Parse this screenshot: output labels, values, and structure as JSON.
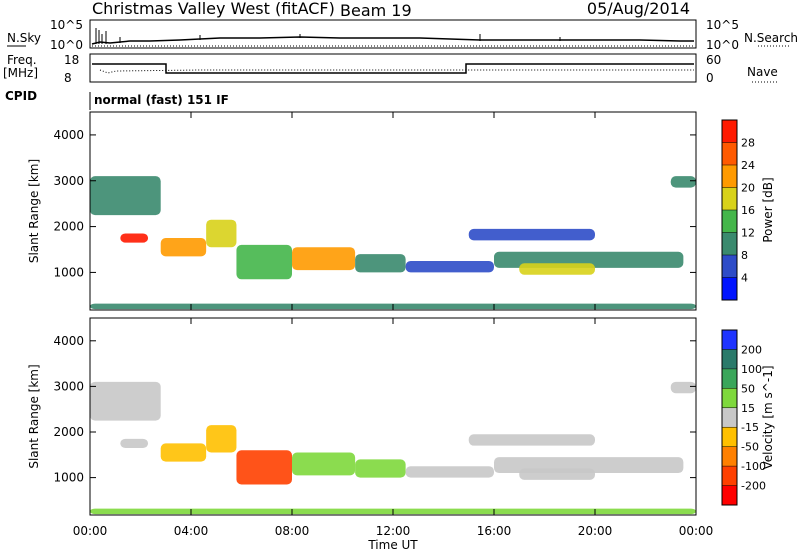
{
  "header": {
    "station": "Christmas Valley West (fitACF)",
    "beam": "Beam 19",
    "date": "05/Aug/2014"
  },
  "top_strip": {
    "left_label": "N.Sky",
    "left_ticks": [
      "10^5",
      "10^0"
    ],
    "right_ticks": [
      "10^5",
      "10^0"
    ],
    "right_label": "N.Search"
  },
  "freq_strip": {
    "left_label_1": "Freq.",
    "left_label_2": "[MHz]",
    "left_ticks": [
      "18",
      "8"
    ],
    "right_ticks": [
      "60",
      "0"
    ],
    "right_label": "Nave"
  },
  "cpid": {
    "label": "CPID",
    "program": "normal (fast) 151 IF"
  },
  "chart_data": [
    {
      "type": "heatmap",
      "title": "",
      "ylabel": "Slant Range [km]",
      "xlabel": "",
      "x_ticks": [
        "00:00",
        "04:00",
        "08:00",
        "12:00",
        "16:00",
        "20:00",
        "00:00"
      ],
      "xlim_hours": [
        0,
        24
      ],
      "y_ticks": [
        "1000",
        "2000",
        "3000",
        "4000"
      ],
      "ylim": [
        180,
        4500
      ],
      "colorbar": {
        "label": "Power [dB]",
        "ticks": [
          "4",
          "8",
          "12",
          "16",
          "20",
          "24",
          "28"
        ],
        "range": [
          0,
          30
        ],
        "colors": [
          "#0014ff",
          "#2e4cc8",
          "#3a8a6e",
          "#44b64a",
          "#d8d21a",
          "#ff9a00",
          "#ff5a00",
          "#ff1a00"
        ]
      },
      "bands": [
        {
          "t0": 0.0,
          "t1": 2.8,
          "r0": 2250,
          "r1": 3100,
          "level": 10
        },
        {
          "t0": 1.2,
          "t1": 2.3,
          "r0": 1650,
          "r1": 1850,
          "level": 28
        },
        {
          "t0": 2.8,
          "t1": 4.6,
          "r0": 1350,
          "r1": 1750,
          "level": 22
        },
        {
          "t0": 4.6,
          "t1": 5.8,
          "r0": 1550,
          "r1": 2150,
          "level": 18
        },
        {
          "t0": 5.8,
          "t1": 8.0,
          "r0": 850,
          "r1": 1600,
          "level": 14
        },
        {
          "t0": 8.0,
          "t1": 10.5,
          "r0": 1050,
          "r1": 1550,
          "level": 22
        },
        {
          "t0": 10.5,
          "t1": 12.5,
          "r0": 1000,
          "r1": 1400,
          "level": 8
        },
        {
          "t0": 12.5,
          "t1": 16.0,
          "r0": 1000,
          "r1": 1250,
          "level": 6
        },
        {
          "t0": 15.0,
          "t1": 20.0,
          "r0": 1700,
          "r1": 1950,
          "level": 6
        },
        {
          "t0": 16.0,
          "t1": 23.5,
          "r0": 1100,
          "r1": 1450,
          "level": 8
        },
        {
          "t0": 17.0,
          "t1": 20.0,
          "r0": 950,
          "r1": 1200,
          "level": 16
        },
        {
          "t0": 23.0,
          "t1": 24.0,
          "r0": 2850,
          "r1": 3100,
          "level": 8
        },
        {
          "t0": 0.0,
          "t1": 24.0,
          "r0": 200,
          "r1": 320,
          "level": 10
        }
      ]
    },
    {
      "type": "heatmap",
      "title": "",
      "ylabel": "Slant Range [km]",
      "xlabel": "Time UT",
      "x_ticks": [
        "00:00",
        "04:00",
        "08:00",
        "12:00",
        "16:00",
        "20:00",
        "00:00"
      ],
      "xlim_hours": [
        0,
        24
      ],
      "y_ticks": [
        "1000",
        "2000",
        "3000",
        "4000"
      ],
      "ylim": [
        180,
        4500
      ],
      "colorbar": {
        "label": "Velocity [m s^-1]",
        "ticks": [
          "200",
          "100",
          "50",
          "15",
          "-15",
          "-50",
          "-100",
          "-200"
        ],
        "colors": [
          "#1f34ff",
          "#2a7a6a",
          "#3aa65a",
          "#7ed83c",
          "#c8c8c8",
          "#ffc000",
          "#ff8000",
          "#ff4000",
          "#ff0000"
        ]
      },
      "bands": [
        {
          "t0": 0.0,
          "t1": 2.8,
          "r0": 2250,
          "r1": 3100,
          "level": 0
        },
        {
          "t0": 1.2,
          "t1": 2.3,
          "r0": 1650,
          "r1": 1850,
          "level": 0
        },
        {
          "t0": 2.8,
          "t1": 4.6,
          "r0": 1350,
          "r1": 1750,
          "level": -30
        },
        {
          "t0": 4.6,
          "t1": 5.8,
          "r0": 1550,
          "r1": 2150,
          "level": -40
        },
        {
          "t0": 5.8,
          "t1": 8.0,
          "r0": 850,
          "r1": 1600,
          "level": -150
        },
        {
          "t0": 8.0,
          "t1": 10.5,
          "r0": 1050,
          "r1": 1550,
          "level": 30
        },
        {
          "t0": 10.5,
          "t1": 12.5,
          "r0": 1000,
          "r1": 1400,
          "level": 40
        },
        {
          "t0": 12.5,
          "t1": 16.0,
          "r0": 1000,
          "r1": 1250,
          "level": 0
        },
        {
          "t0": 15.0,
          "t1": 20.0,
          "r0": 1700,
          "r1": 1950,
          "level": 0
        },
        {
          "t0": 16.0,
          "t1": 23.5,
          "r0": 1100,
          "r1": 1450,
          "level": 0
        },
        {
          "t0": 17.0,
          "t1": 20.0,
          "r0": 950,
          "r1": 1200,
          "level": 0
        },
        {
          "t0": 23.0,
          "t1": 24.0,
          "r0": 2850,
          "r1": 3100,
          "level": 0
        },
        {
          "t0": 0.0,
          "t1": 24.0,
          "r0": 200,
          "r1": 320,
          "level": 20
        }
      ]
    }
  ]
}
